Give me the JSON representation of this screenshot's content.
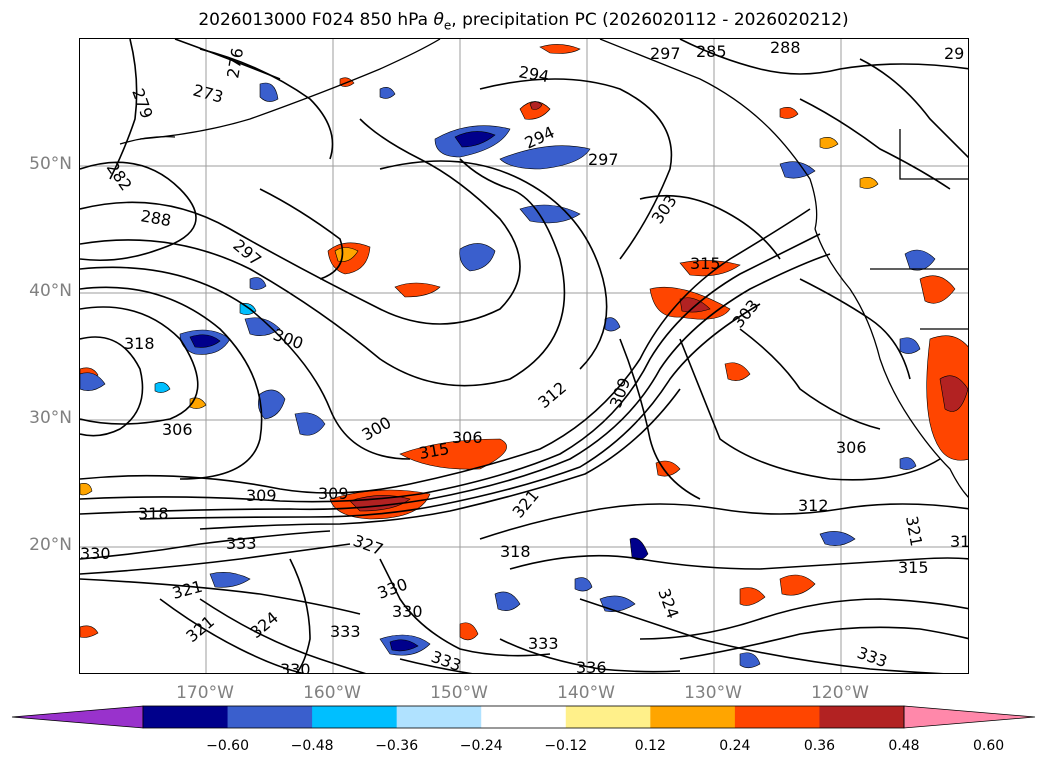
{
  "title": {
    "prefix": "2026013000 F024 850 hPa ",
    "var_symbol": "θ",
    "var_sub": "e",
    "suffix": ", precipitation PC (2026020112 - 2026020212)"
  },
  "axes": {
    "lat_labels": [
      "50°N",
      "40°N",
      "30°N",
      "20°N"
    ],
    "lon_labels": [
      "170°W",
      "160°W",
      "150°W",
      "140°W",
      "130°W",
      "120°W"
    ]
  },
  "contour_labels": [
    {
      "text": "279"
    },
    {
      "text": "273"
    },
    {
      "text": "276"
    },
    {
      "text": "282"
    },
    {
      "text": "288"
    },
    {
      "text": "294"
    },
    {
      "text": "294"
    },
    {
      "text": "297"
    },
    {
      "text": "297"
    },
    {
      "text": "297"
    },
    {
      "text": "300"
    },
    {
      "text": "300"
    },
    {
      "text": "303"
    },
    {
      "text": "303"
    },
    {
      "text": "306"
    },
    {
      "text": "306"
    },
    {
      "text": "306"
    },
    {
      "text": "309"
    },
    {
      "text": "309"
    },
    {
      "text": "309"
    },
    {
      "text": "312"
    },
    {
      "text": "312"
    },
    {
      "text": "315"
    },
    {
      "text": "315"
    },
    {
      "text": "315"
    },
    {
      "text": "318"
    },
    {
      "text": "318"
    },
    {
      "text": "318"
    },
    {
      "text": "321"
    },
    {
      "text": "321"
    },
    {
      "text": "321"
    },
    {
      "text": "321"
    },
    {
      "text": "324"
    },
    {
      "text": "324"
    },
    {
      "text": "327"
    },
    {
      "text": "330"
    },
    {
      "text": "330"
    },
    {
      "text": "330"
    },
    {
      "text": "330"
    },
    {
      "text": "333"
    },
    {
      "text": "333"
    },
    {
      "text": "333"
    },
    {
      "text": "333"
    },
    {
      "text": "333"
    },
    {
      "text": "336"
    },
    {
      "text": "285"
    },
    {
      "text": "288"
    },
    {
      "text": "29"
    },
    {
      "text": "31"
    }
  ],
  "colorbar": {
    "colors": [
      "#9932cc",
      "#00008b",
      "#3a5fcd",
      "#00bfff",
      "#b0e2ff",
      "#ffffff",
      "#fff08a",
      "#ffa500",
      "#ff4500",
      "#b22222",
      "#ff88aa"
    ],
    "ticks": [
      "−0.60",
      "−0.48",
      "−0.36",
      "−0.24",
      "−0.12",
      "0.12",
      "0.24",
      "0.36",
      "0.48",
      "0.60"
    ]
  }
}
